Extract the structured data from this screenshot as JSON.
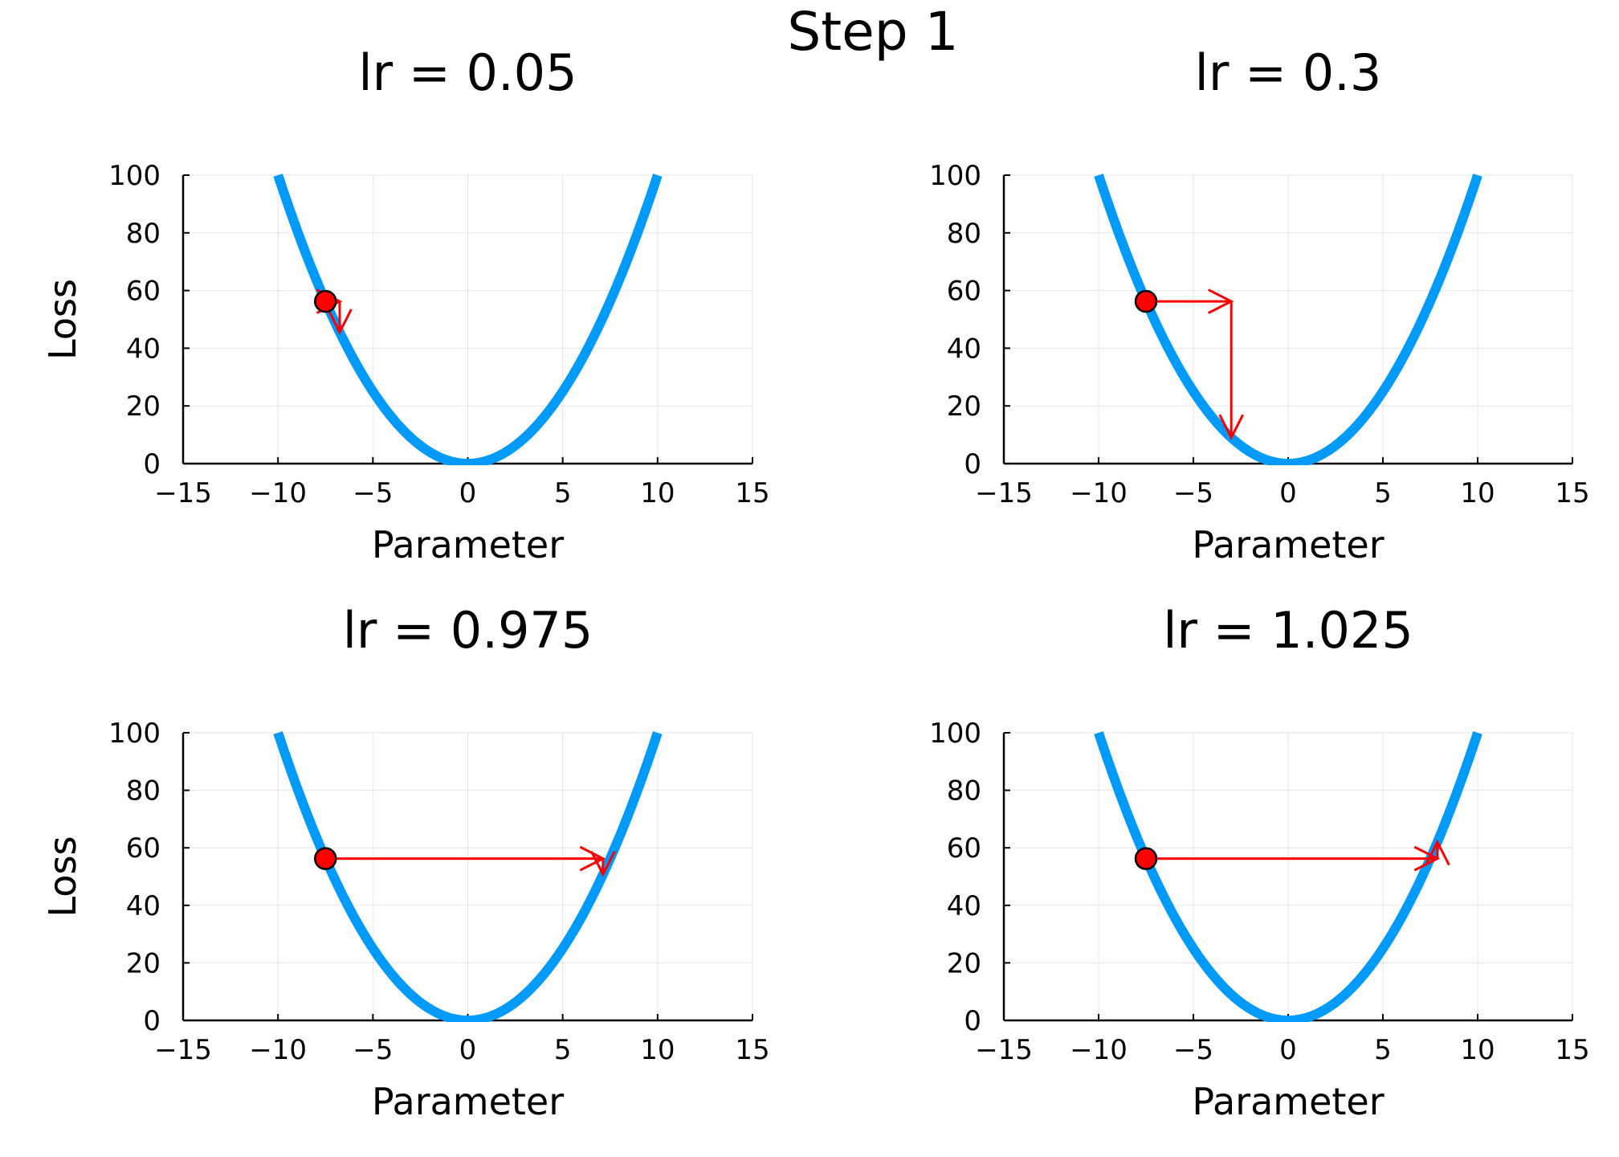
{
  "figure": {
    "suptitle": "Step 1"
  },
  "chart_data": [
    {
      "type": "line",
      "title": "lr = 0.05",
      "xlabel": "Parameter",
      "ylabel": "Loss",
      "xlim": [
        -15,
        15
      ],
      "ylim": [
        0,
        100
      ],
      "xticks": [
        -15,
        -10,
        -5,
        0,
        5,
        10,
        15
      ],
      "xtick_labels": [
        "−15",
        "−10",
        "−5",
        "0",
        "5",
        "10",
        "15"
      ],
      "yticks": [
        0,
        20,
        40,
        60,
        80,
        100
      ],
      "ytick_labels": [
        "0",
        "20",
        "40",
        "60",
        "80",
        "100"
      ],
      "grid": true,
      "curve": {
        "function": "x^2",
        "x_range": [
          -10,
          10
        ],
        "color": "#009AFA"
      },
      "point": {
        "x": -7.5,
        "y": 56.25,
        "color": "#FF0000"
      },
      "arrows": [
        {
          "from": [
            -7.5,
            56.25
          ],
          "to": [
            -6.75,
            56.25
          ]
        },
        {
          "from": [
            -6.75,
            56.25
          ],
          "to": [
            -6.75,
            45.56
          ]
        }
      ]
    },
    {
      "type": "line",
      "title": "lr = 0.3",
      "xlabel": "Parameter",
      "ylabel": "Loss",
      "xlim": [
        -15,
        15
      ],
      "ylim": [
        0,
        100
      ],
      "xticks": [
        -15,
        -10,
        -5,
        0,
        5,
        10,
        15
      ],
      "xtick_labels": [
        "−15",
        "−10",
        "−5",
        "0",
        "5",
        "10",
        "15"
      ],
      "yticks": [
        0,
        20,
        40,
        60,
        80,
        100
      ],
      "ytick_labels": [
        "0",
        "20",
        "40",
        "60",
        "80",
        "100"
      ],
      "grid": true,
      "curve": {
        "function": "x^2",
        "x_range": [
          -10,
          10
        ],
        "color": "#009AFA"
      },
      "point": {
        "x": -7.5,
        "y": 56.25,
        "color": "#FF0000"
      },
      "arrows": [
        {
          "from": [
            -7.5,
            56.25
          ],
          "to": [
            -3.0,
            56.25
          ]
        },
        {
          "from": [
            -3.0,
            56.25
          ],
          "to": [
            -3.0,
            9.0
          ]
        }
      ]
    },
    {
      "type": "line",
      "title": "lr = 0.975",
      "xlabel": "Parameter",
      "ylabel": "Loss",
      "xlim": [
        -15,
        15
      ],
      "ylim": [
        0,
        100
      ],
      "xticks": [
        -15,
        -10,
        -5,
        0,
        5,
        10,
        15
      ],
      "xtick_labels": [
        "−15",
        "−10",
        "−5",
        "0",
        "5",
        "10",
        "15"
      ],
      "yticks": [
        0,
        20,
        40,
        60,
        80,
        100
      ],
      "ytick_labels": [
        "0",
        "20",
        "40",
        "60",
        "80",
        "100"
      ],
      "grid": true,
      "curve": {
        "function": "x^2",
        "x_range": [
          -10,
          10
        ],
        "color": "#009AFA"
      },
      "point": {
        "x": -7.5,
        "y": 56.25,
        "color": "#FF0000"
      },
      "arrows": [
        {
          "from": [
            -7.5,
            56.25
          ],
          "to": [
            7.125,
            56.25
          ]
        },
        {
          "from": [
            7.125,
            56.25
          ],
          "to": [
            7.125,
            50.77
          ]
        }
      ]
    },
    {
      "type": "line",
      "title": "lr = 1.025",
      "xlabel": "Parameter",
      "ylabel": "Loss",
      "xlim": [
        -15,
        15
      ],
      "ylim": [
        0,
        100
      ],
      "xticks": [
        -15,
        -10,
        -5,
        0,
        5,
        10,
        15
      ],
      "xtick_labels": [
        "−15",
        "−10",
        "−5",
        "0",
        "5",
        "10",
        "15"
      ],
      "yticks": [
        0,
        20,
        40,
        60,
        80,
        100
      ],
      "ytick_labels": [
        "0",
        "20",
        "40",
        "60",
        "80",
        "100"
      ],
      "grid": true,
      "curve": {
        "function": "x^2",
        "x_range": [
          -10,
          10
        ],
        "color": "#009AFA"
      },
      "point": {
        "x": -7.5,
        "y": 56.25,
        "color": "#FF0000"
      },
      "arrows": [
        {
          "from": [
            -7.5,
            56.25
          ],
          "to": [
            7.875,
            56.25
          ]
        },
        {
          "from": [
            7.875,
            56.25
          ],
          "to": [
            7.875,
            62.02
          ]
        }
      ]
    }
  ]
}
